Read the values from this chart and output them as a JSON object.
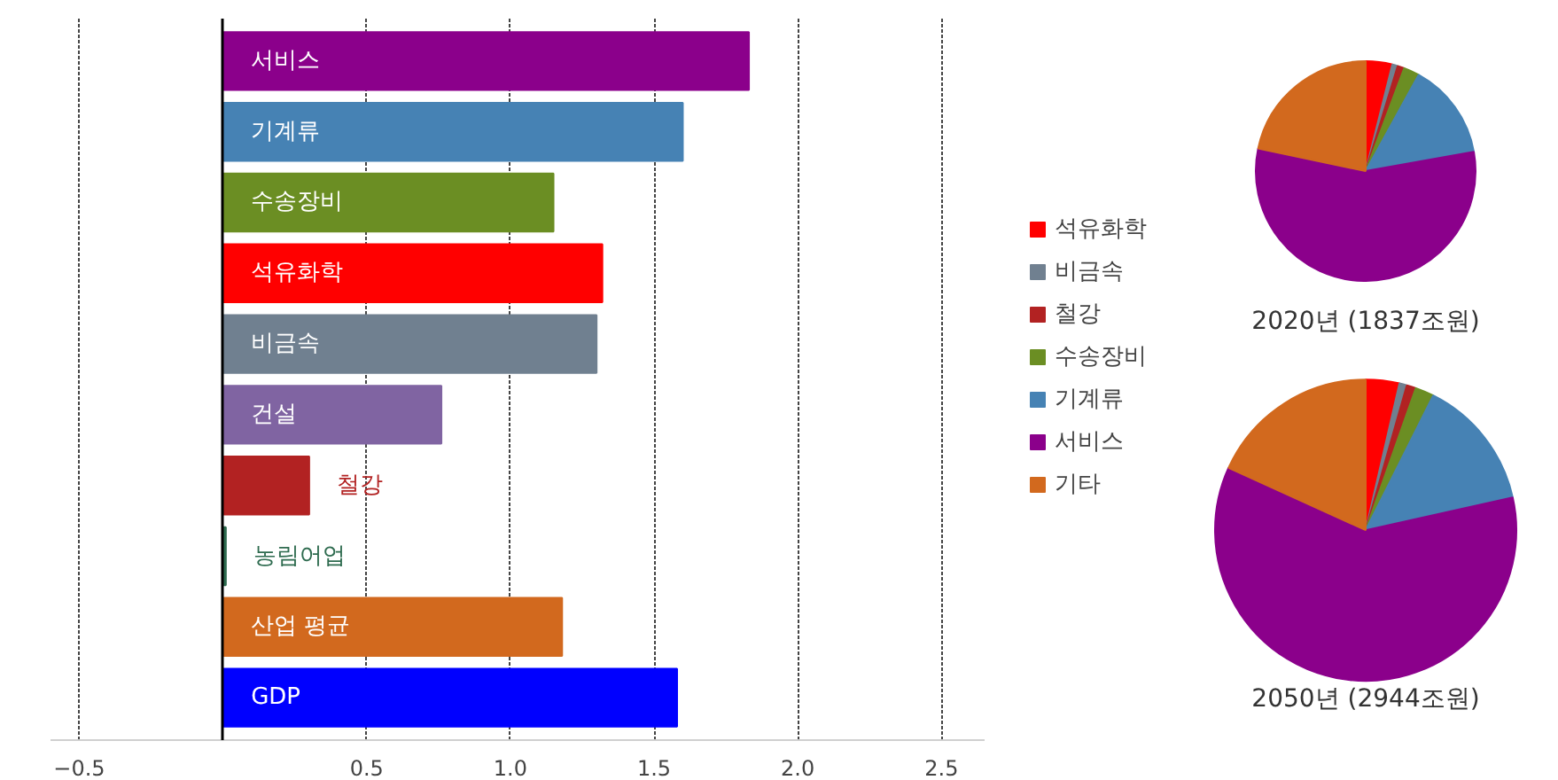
{
  "chart_data": [
    {
      "type": "bar",
      "orientation": "horizontal",
      "categories": [
        "서비스",
        "기계류",
        "수송장비",
        "석유화학",
        "비금속",
        "건설",
        "철강",
        "농림어업",
        "산업 평균",
        "GDP"
      ],
      "values": [
        1.83,
        1.6,
        1.15,
        1.32,
        1.3,
        0.76,
        0.3,
        0.01,
        1.18,
        1.58
      ],
      "colors": [
        "#8b008b",
        "#4682b4",
        "#6b8e23",
        "#ff0000",
        "#708090",
        "#8064a2",
        "#b22222",
        "#2e6b4f",
        "#d2691e",
        "#0000ff"
      ],
      "xlim": [
        -0.6,
        2.65
      ],
      "xticks": [
        -0.5,
        0.5,
        {
          "value": 1.0,
          "label": "1.0"
        },
        1.5,
        {
          "value": 2.0,
          "label": "2.0"
        },
        2.5
      ],
      "grid": "x"
    },
    {
      "type": "pie",
      "legend": "left",
      "categories": [
        "석유화학",
        "비금속",
        "철강",
        "수송장비",
        "기계류",
        "서비스",
        "기타"
      ],
      "colors": [
        "#ff0000",
        "#708090",
        "#b22222",
        "#6b8e23",
        "#4682b4",
        "#8b008b",
        "#d2691e"
      ],
      "series": [
        {
          "name": "2020년 (1837조원)",
          "values": [
            3.9,
            0.8,
            1.0,
            2.3,
            14.2,
            56.1,
            21.7
          ]
        },
        {
          "name": "2050년 (2944조원)",
          "values": [
            3.6,
            0.8,
            1.0,
            2.0,
            14.1,
            60.3,
            18.2
          ]
        }
      ]
    }
  ]
}
